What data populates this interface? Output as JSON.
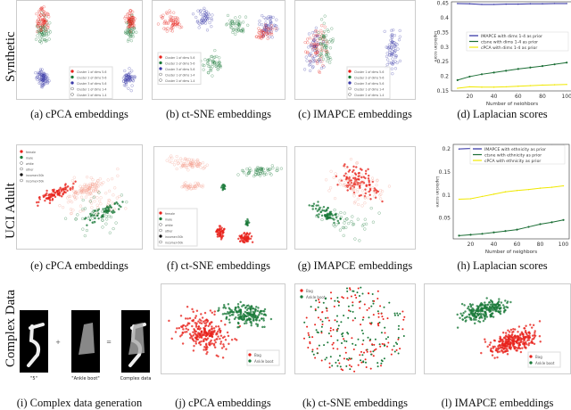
{
  "rows": [
    "Synthetic",
    "UCI Adult",
    "Complex Data"
  ],
  "captions": {
    "a": "(a) cPCA embeddings",
    "b": "(b) ct-SNE embeddings",
    "c": "(c) IMAPCE embeddings",
    "d": "(d) Laplacian scores",
    "e": "(e) cPCA embeddings",
    "f": "(f) ct-SNE embeddings",
    "g": "(g) IMAPCE embeddings",
    "h": "(h) Laplacian scores",
    "i": "(i) Complex data generation",
    "j": "(j) cPCA embeddings",
    "k": "(k) ct-SNE embeddings",
    "l": "(l) IMAPCE embeddings"
  },
  "complex_gen": {
    "labels": [
      "\"5\"",
      "\"Ankle boot\"",
      "Complex data"
    ],
    "plus": "+",
    "equals": "="
  },
  "colors": {
    "red": "#e8231c",
    "green": "#1b7a3a",
    "blue": "#3a3aa8",
    "yellow": "#f5f000",
    "salmon": "#f4a090"
  },
  "chart_data": [
    {
      "id": "d",
      "type": "line",
      "xlabel": "Number of neighbors",
      "ylabel": "Laplacian score",
      "x": [
        10,
        20,
        30,
        40,
        50,
        60,
        70,
        80,
        90,
        100
      ],
      "ylim": [
        0.15,
        0.455
      ],
      "yticks": [
        0.15,
        0.2,
        0.25,
        0.3,
        0.35,
        0.4,
        0.45
      ],
      "xticks": [
        20,
        40,
        60,
        80,
        100
      ],
      "legend": "center-right",
      "series": [
        {
          "name": "IMAPCE with dims 1-4 as prior",
          "color": "#2a2aa0",
          "values": [
            0.449,
            0.448,
            0.446,
            0.446,
            0.447,
            0.447,
            0.448,
            0.448,
            0.449,
            0.449
          ]
        },
        {
          "name": "ctsne with dims 1-4 as prior",
          "color": "#1b6e35",
          "values": [
            0.187,
            0.199,
            0.207,
            0.213,
            0.219,
            0.225,
            0.23,
            0.235,
            0.241,
            0.247
          ]
        },
        {
          "name": "cPCA with dims 1-4 as prior",
          "color": "#f0e800",
          "values": [
            0.159,
            0.164,
            0.163,
            0.163,
            0.164,
            0.166,
            0.168,
            0.17,
            0.171,
            0.172
          ]
        }
      ]
    },
    {
      "id": "h",
      "type": "line",
      "xlabel": "Number of neighbors",
      "ylabel": "Laplacian score",
      "x": [
        10,
        20,
        30,
        40,
        50,
        60,
        70,
        80,
        90,
        100
      ],
      "ylim": [
        0.005,
        0.21
      ],
      "yticks": [
        0.05,
        0.1,
        0.15,
        0.2
      ],
      "xticks": [
        20,
        40,
        60,
        80,
        100
      ],
      "legend": "top-right",
      "series": [
        {
          "name": "IMAPCE with ethnicity as prior",
          "color": "#2a2aa0",
          "values": [
            0.2,
            0.201,
            0.203,
            0.204,
            0.205,
            0.205,
            0.206,
            0.206,
            0.207,
            0.207
          ]
        },
        {
          "name": "ctsne with ethnicity as prior",
          "color": "#1b6e35",
          "values": [
            0.012,
            0.014,
            0.016,
            0.019,
            0.022,
            0.025,
            0.031,
            0.037,
            0.041,
            0.046
          ]
        },
        {
          "name": "cPCA with ethnicity as prior",
          "color": "#f0e800",
          "values": [
            0.091,
            0.092,
            0.097,
            0.102,
            0.107,
            0.11,
            0.112,
            0.115,
            0.117,
            0.12
          ]
        }
      ]
    },
    {
      "id": "a",
      "type": "scatter",
      "legend": [
        "Cluster 1 of dims 5-6",
        "Cluster 2 of dims 5-6",
        "Cluster 3 of dims 5-6",
        "Cluster 1 of dims 1-4",
        "Cluster 2 of dims 1-4"
      ]
    },
    {
      "id": "b",
      "type": "scatter",
      "legend": [
        "Cluster 1 of dims 5-6",
        "Cluster 2 of dims 5-6",
        "Cluster 3 of dims 5-6",
        "Cluster 1 of dims 1-4",
        "Cluster 2 of dims 1-4"
      ]
    },
    {
      "id": "c",
      "type": "scatter",
      "legend": [
        "Cluster 1 of dims 5-6",
        "Cluster 2 of dims 5-6",
        "Cluster 3 of dims 5-6",
        "Cluster 1 of dims 1-4",
        "Cluster 2 of dims 1-4"
      ]
    },
    {
      "id": "e",
      "type": "scatter",
      "legend": [
        "female",
        "male",
        "white",
        "other",
        "income<50k",
        "income>50k"
      ]
    },
    {
      "id": "f",
      "type": "scatter",
      "legend": [
        "female",
        "male",
        "white",
        "other",
        "income<50k",
        "income>50k"
      ]
    },
    {
      "id": "g",
      "type": "scatter",
      "legend": []
    },
    {
      "id": "j",
      "type": "scatter",
      "legend": [
        "Bag",
        "Ankle boot"
      ]
    },
    {
      "id": "k",
      "type": "scatter",
      "legend": [
        "Bag",
        "Ankle boot"
      ]
    },
    {
      "id": "l",
      "type": "scatter",
      "legend": [
        "Bag",
        "Ankle boot"
      ]
    }
  ]
}
